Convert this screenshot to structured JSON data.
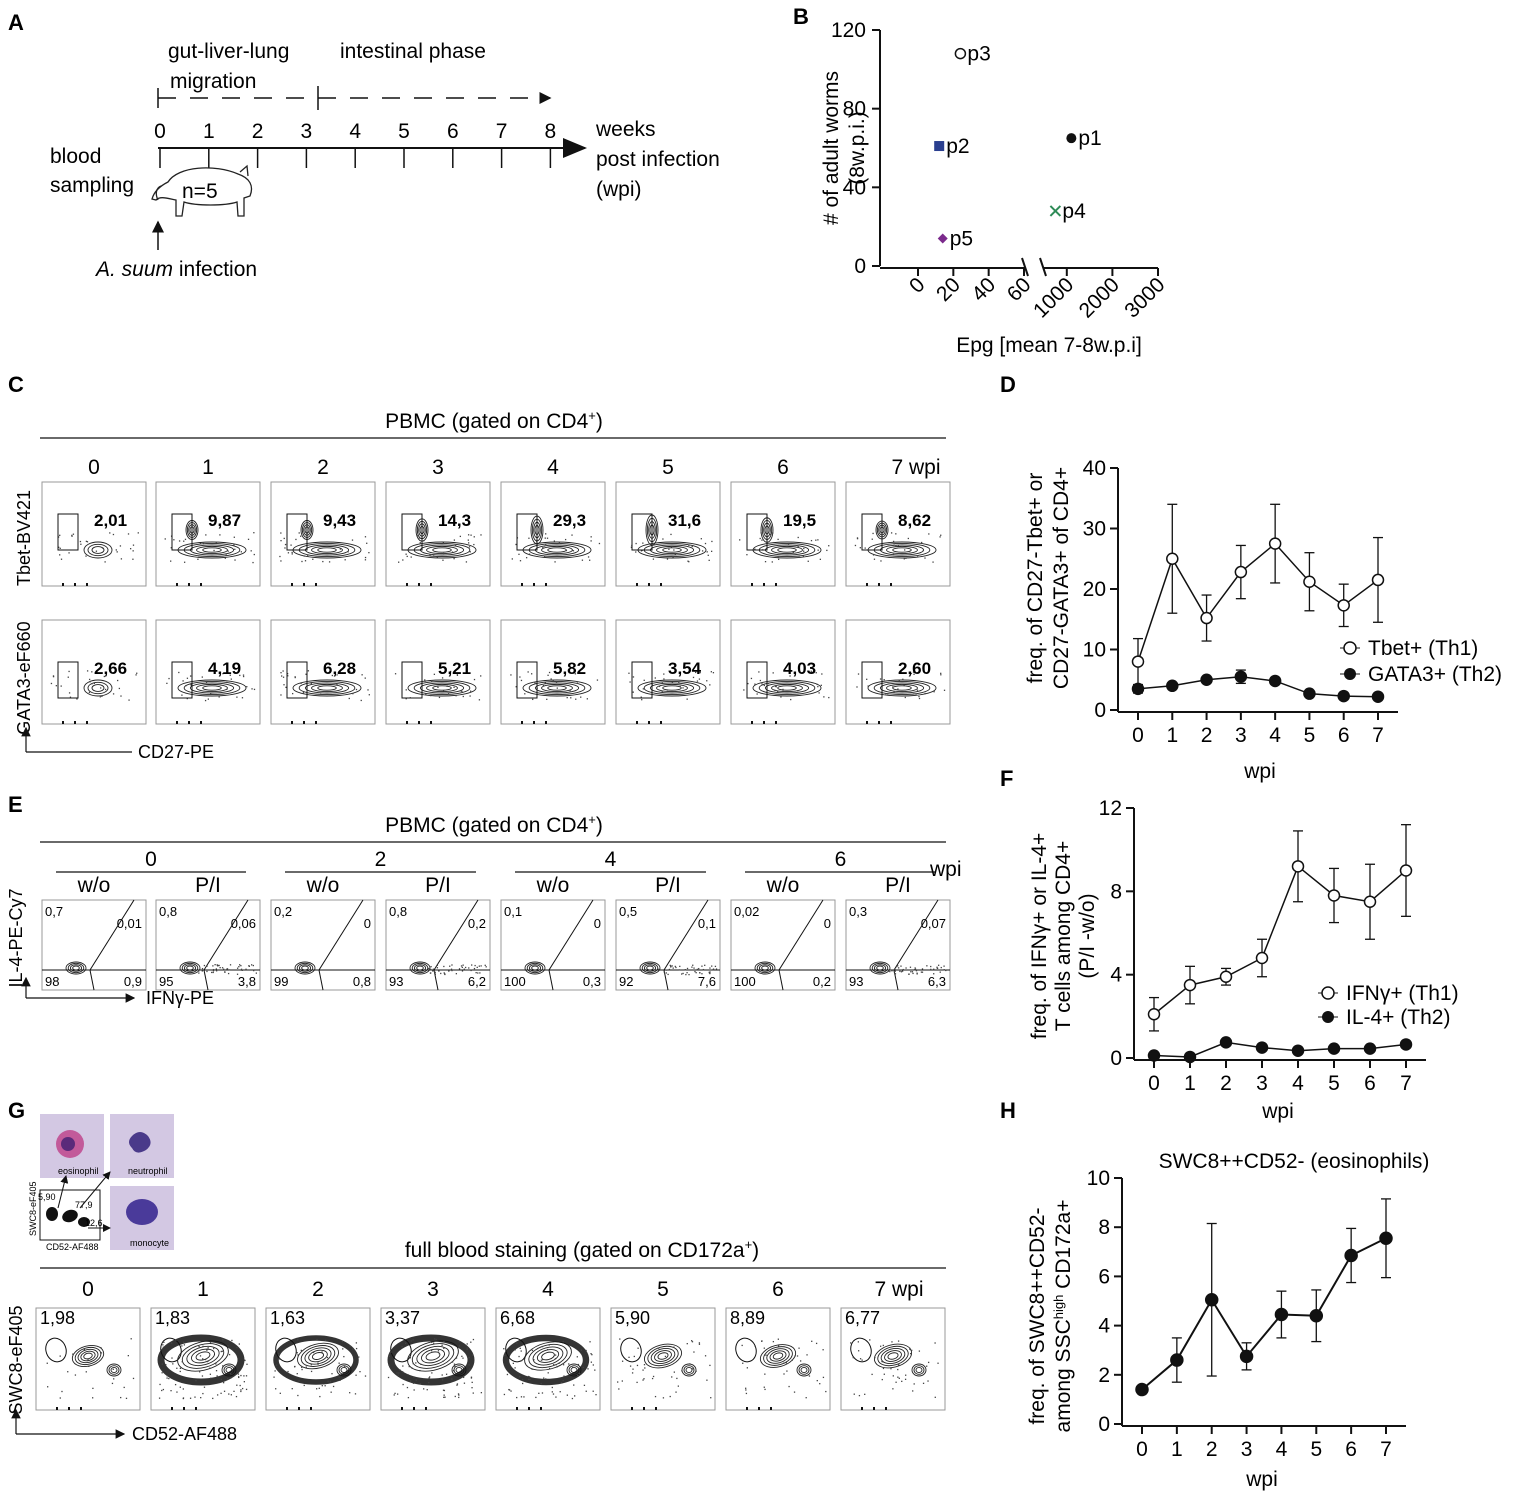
{
  "panel_labels": {
    "A": "A",
    "B": "B",
    "C": "C",
    "D": "D",
    "E": "E",
    "F": "F",
    "G": "G",
    "H": "H"
  },
  "panelA": {
    "phase1_line1": "gut-liver-lung",
    "phase1_line2": "migration",
    "phase2": "intestinal phase",
    "weeks": [
      "0",
      "1",
      "2",
      "3",
      "4",
      "5",
      "6",
      "7",
      "8"
    ],
    "axis_label_1": "weeks",
    "axis_label_2": "post infection",
    "axis_label_3": "(wpi)",
    "blood_1": "blood",
    "blood_2": "sampling",
    "n": "n=5",
    "infection_species": "A. suum",
    "infection_word": " infection"
  },
  "panelB": {
    "ylabel_1": "# of adult worms",
    "ylabel_2": "(8w.p.i.)",
    "xlabel": "Epg [mean 7-8w.p.i]",
    "yticks": [
      "0",
      "40",
      "80",
      "120"
    ],
    "xticks_left": [
      "0",
      "20",
      "40",
      "60"
    ],
    "xticks_right": [
      "1000",
      "2000",
      "3000"
    ]
  },
  "chart_data": [
    {
      "type": "scatter",
      "title": "",
      "xlabel": "Epg [mean 7-8w.p.i]",
      "ylabel": "# of adult worms (8w.p.i.)",
      "ylim": [
        0,
        120
      ],
      "x_axis_break": {
        "left_range": [
          0,
          60
        ],
        "right_range": [
          500,
          3000
        ]
      },
      "points": [
        {
          "label": "p1",
          "x": 1100,
          "y": 65,
          "marker": "filled-circle",
          "color": "#111111"
        },
        {
          "label": "p2",
          "x": 12,
          "y": 61,
          "marker": "square",
          "color": "#2a3f8f"
        },
        {
          "label": "p3",
          "x": 24,
          "y": 108,
          "marker": "open-circle",
          "color": "#111111"
        },
        {
          "label": "p4",
          "x": 750,
          "y": 28,
          "marker": "x",
          "color": "#2e8b57"
        },
        {
          "label": "p5",
          "x": 14,
          "y": 14,
          "marker": "diamond",
          "color": "#7b2a8c"
        }
      ]
    },
    {
      "type": "line",
      "title": "",
      "xlabel": "wpi",
      "ylabel_1": "freq. of CD27-Tbet+ or",
      "ylabel_2": "CD27-GATA3+ of CD4+",
      "x": [
        0,
        1,
        2,
        3,
        4,
        5,
        6,
        7
      ],
      "ylim": [
        0,
        40
      ],
      "yticks": [
        0,
        10,
        20,
        30,
        40
      ],
      "series": [
        {
          "name": "Tbet+ (Th1)",
          "marker": "open-circle",
          "values": [
            8,
            25,
            15.2,
            22.8,
            27.5,
            21.2,
            17.3,
            21.5
          ],
          "err": [
            3.8,
            9,
            3.8,
            4.4,
            6.5,
            4.8,
            3.5,
            7
          ]
        },
        {
          "name": "GATA3+ (Th2)",
          "marker": "filled-circle",
          "values": [
            3.5,
            4,
            5,
            5.5,
            4.8,
            2.7,
            2.3,
            2.2
          ],
          "err": [
            0.7,
            0.5,
            0.4,
            1.1,
            0.5,
            0.3,
            0.3,
            0.3
          ]
        }
      ]
    },
    {
      "type": "line",
      "title": "",
      "xlabel": "wpi",
      "ylabel_1": "freq. of IFNγ+ or IL-4+",
      "ylabel_2": "T cells among CD4+",
      "ylabel_3": "(P/I -w/o)",
      "x": [
        0,
        1,
        2,
        3,
        4,
        5,
        6,
        7
      ],
      "ylim": [
        0,
        12
      ],
      "yticks": [
        0,
        4,
        8,
        12
      ],
      "series": [
        {
          "name": "IFNγ+ (Th1)",
          "marker": "open-circle",
          "values": [
            2.1,
            3.5,
            3.9,
            4.8,
            9.2,
            7.8,
            7.5,
            9.0
          ],
          "err": [
            0.8,
            0.9,
            0.4,
            0.9,
            1.7,
            1.3,
            1.8,
            2.2
          ]
        },
        {
          "name": "IL-4+ (Th2)",
          "marker": "filled-circle",
          "values": [
            0.12,
            0.05,
            0.75,
            0.5,
            0.35,
            0.45,
            0.45,
            0.65
          ],
          "err": [
            0.05,
            0.05,
            0.1,
            0.1,
            0.05,
            0.05,
            0.05,
            0.08
          ]
        }
      ]
    },
    {
      "type": "line",
      "title": "SWC8++CD52- (eosinophils)",
      "xlabel": "wpi",
      "ylabel_1": "freq. of SWC8++CD52-",
      "ylabel_2_pre": "among SSC",
      "ylabel_2_sup": "high",
      "ylabel_2_post": " CD172a+",
      "x": [
        0,
        1,
        2,
        3,
        4,
        5,
        6,
        7
      ],
      "ylim": [
        0,
        10
      ],
      "yticks": [
        0,
        2,
        4,
        6,
        8,
        10
      ],
      "series": [
        {
          "name": "eosinophils",
          "marker": "filled-circle",
          "values": [
            1.4,
            2.6,
            5.05,
            2.75,
            4.45,
            4.4,
            6.85,
            7.55
          ],
          "err": [
            0.1,
            0.9,
            3.1,
            0.55,
            0.95,
            1.05,
            1.1,
            1.6
          ]
        }
      ]
    }
  ],
  "panelC": {
    "header": "PBMC (gated on CD4",
    "header_sup": "+",
    "header_close": ")",
    "columns": [
      "0",
      "1",
      "2",
      "3",
      "4",
      "5",
      "6",
      "7 wpi"
    ],
    "row1_label": "Tbet-BV421",
    "row2_label": "GATA3-eF660",
    "xaxis_label": "CD27-PE",
    "tbet_values": [
      "2,01",
      "9,87",
      "9,43",
      "14,3",
      "29,3",
      "31,6",
      "19,5",
      "8,62"
    ],
    "gata3_values": [
      "2,66",
      "4,19",
      "6,28",
      "5,21",
      "5,82",
      "3,54",
      "4,03",
      "2,60"
    ]
  },
  "panelE": {
    "header": "PBMC (gated on CD4",
    "header_sup": "+",
    "header_close": ")",
    "timepoints": [
      "0",
      "2",
      "4",
      "6"
    ],
    "wpi": "wpi",
    "conditions": [
      "w/o",
      "P/I"
    ],
    "ylabel": "IL-4-PE-Cy7",
    "xlabel": "IFNγ-PE",
    "plots": [
      {
        "tl": "0,7",
        "tr": "0,01",
        "bl": "98",
        "br": "0,9"
      },
      {
        "tl": "0,8",
        "tr": "0,06",
        "bl": "95",
        "br": "3,8"
      },
      {
        "tl": "0,2",
        "tr": "0",
        "bl": "99",
        "br": "0,8"
      },
      {
        "tl": "0,8",
        "tr": "0,2",
        "bl": "93",
        "br": "6,2"
      },
      {
        "tl": "0,1",
        "tr": "0",
        "bl": "100",
        "br": "0,3"
      },
      {
        "tl": "0,5",
        "tr": "0,1",
        "bl": "92",
        "br": "7,6"
      },
      {
        "tl": "0,02",
        "tr": "0",
        "bl": "100",
        "br": "0,2"
      },
      {
        "tl": "0,3",
        "tr": "0,07",
        "bl": "93",
        "br": "6,3"
      }
    ]
  },
  "panelG": {
    "header": "full blood staining (gated on CD172a",
    "header_sup": "+",
    "header_close": ")",
    "columns": [
      "0",
      "1",
      "2",
      "3",
      "4",
      "5",
      "6",
      "7 wpi"
    ],
    "values": [
      "1,98",
      "1,83",
      "1,63",
      "3,37",
      "6,68",
      "5,90",
      "8,89",
      "6,77"
    ],
    "ylabel": "SWC8-eF405",
    "xlabel": "CD52-AF488",
    "inset": {
      "eosinophil": "eosinophil",
      "neutrophil": "neutrophil",
      "monocyte": "monocyte",
      "v1": "5,90",
      "v2": "77,9",
      "v3": "12,6",
      "ylab": "SWC8-eF405",
      "xlab": "CD52-AF488"
    }
  },
  "colors": {
    "p2": "#2a3f8f",
    "p4": "#2e8b57",
    "p5": "#7b2a8c",
    "cell_bg": "#cfc4e0"
  }
}
